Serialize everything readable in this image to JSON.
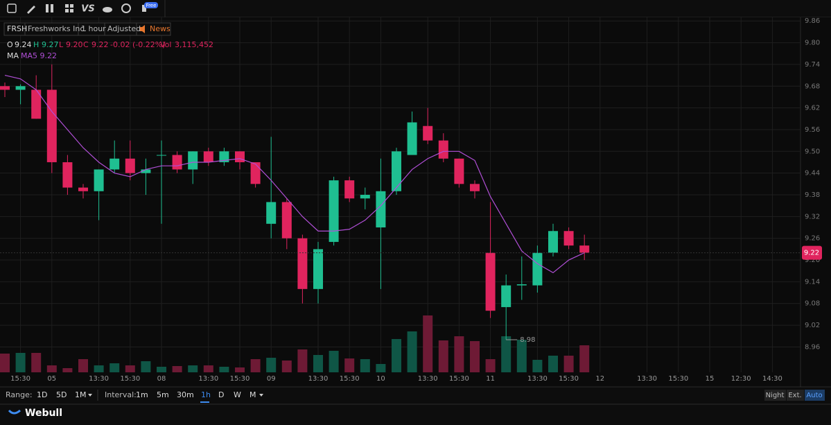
{
  "toolbar": {
    "vs": "VS",
    "badge": "Free"
  },
  "header": {
    "symbol": "FRSH",
    "name": "Freshworks Inc.",
    "interval": "1 hour",
    "adjustment": "Adjusted",
    "news": "News"
  },
  "legend": {
    "o_label": "O",
    "open": "9.24",
    "h_label": "H",
    "high": "9.27",
    "l_label": "L",
    "low": "9.20",
    "c_label": "C",
    "close": "9.22",
    "change": "-0.02 (-0.22%)",
    "vol_label": "Vol",
    "volume": "3,115,452",
    "ma_label": "MA",
    "ma5": "MA5 9.22"
  },
  "chart_data": {
    "type": "candlestick",
    "open": [
      9.68,
      9.67,
      9.67,
      9.67,
      9.47,
      9.4,
      9.39,
      9.45,
      9.48,
      9.44,
      9.49,
      9.49,
      9.45,
      9.5,
      9.47,
      9.5,
      9.47,
      9.3,
      9.36,
      9.26,
      9.12,
      9.25,
      9.42,
      9.37,
      9.29,
      9.39,
      9.49,
      9.57,
      9.53,
      9.48,
      9.41,
      9.22,
      9.07,
      9.13,
      9.13,
      9.22,
      9.28,
      9.24
    ],
    "high": [
      9.69,
      9.685,
      9.71,
      9.74,
      9.49,
      9.41,
      9.45,
      9.53,
      9.53,
      9.48,
      9.53,
      9.5,
      9.5,
      9.51,
      9.51,
      9.5,
      9.47,
      9.54,
      9.37,
      9.27,
      9.25,
      9.43,
      9.43,
      9.4,
      9.48,
      9.51,
      9.61,
      9.62,
      9.55,
      9.48,
      9.42,
      9.36,
      9.16,
      9.21,
      9.24,
      9.3,
      9.29,
      9.27
    ],
    "low": [
      9.65,
      9.63,
      9.59,
      9.44,
      9.38,
      9.37,
      9.31,
      9.44,
      9.42,
      9.38,
      9.3,
      9.44,
      9.41,
      9.46,
      9.46,
      9.45,
      9.4,
      9.26,
      9.23,
      9.08,
      9.08,
      9.24,
      9.36,
      9.34,
      9.12,
      9.38,
      9.49,
      9.52,
      9.47,
      9.4,
      9.37,
      9.04,
      8.98,
      9.09,
      9.11,
      9.21,
      9.23,
      9.2
    ],
    "close": [
      9.67,
      9.68,
      9.59,
      9.47,
      9.4,
      9.39,
      9.45,
      9.48,
      9.44,
      9.45,
      9.49,
      9.45,
      9.5,
      9.47,
      9.5,
      9.47,
      9.41,
      9.36,
      9.26,
      9.12,
      9.23,
      9.42,
      9.37,
      9.38,
      9.39,
      9.5,
      9.58,
      9.53,
      9.48,
      9.41,
      9.39,
      9.06,
      9.13,
      9.133,
      9.22,
      9.28,
      9.24,
      9.22
    ],
    "volume": [
      2160000,
      2240000,
      2240000,
      800000,
      480000,
      1520000,
      800000,
      1040000,
      800000,
      1280000,
      640000,
      720000,
      800000,
      800000,
      640000,
      560000,
      1520000,
      1680000,
      1360000,
      2640000,
      2000000,
      2480000,
      1600000,
      1520000,
      960000,
      3840000,
      4720000,
      6560000,
      3680000,
      4160000,
      3600000,
      1520000,
      4160000,
      3760000,
      1440000,
      1920000,
      1920000,
      3115452
    ],
    "ma_values": [
      9.71,
      9.7,
      9.67,
      9.61,
      9.56,
      9.51,
      9.47,
      9.44,
      9.43,
      9.45,
      9.46,
      9.46,
      9.47,
      9.47,
      9.475,
      9.48,
      9.465,
      9.42,
      9.37,
      9.32,
      9.28,
      9.28,
      9.285,
      9.31,
      9.35,
      9.4,
      9.45,
      9.48,
      9.5,
      9.5,
      9.475,
      9.375,
      9.3,
      9.225,
      9.19,
      9.165,
      9.2,
      9.22
    ],
    "up_color": "#1fbf91",
    "down_color": "#e0245e",
    "up_volume_color": "#0f5646",
    "down_volume_color": "#6e1a35",
    "ma_color": "#b04fd6",
    "ylim": [
      8.89,
      9.87
    ],
    "yticks": [
      9.86,
      {
        "value": 9.8,
        "label": "9.80"
      },
      9.74,
      9.68,
      9.62,
      9.56,
      {
        "value": 9.5,
        "label": "9.50"
      },
      9.44,
      9.38,
      9.32,
      9.26,
      {
        "value": 9.2,
        "label": "9.20"
      },
      9.14,
      9.08,
      9.02,
      8.96
    ],
    "xticks": [
      {
        "value": 1,
        "label": "15:30"
      },
      {
        "value": 3,
        "label": "05"
      },
      {
        "value": 6,
        "label": "13:30"
      },
      {
        "value": 8,
        "label": "15:30"
      },
      {
        "value": 10,
        "label": "08"
      },
      {
        "value": 13,
        "label": "13:30"
      },
      {
        "value": 15,
        "label": "15:30"
      },
      {
        "value": 17,
        "label": "09"
      },
      {
        "value": 20,
        "label": "13:30"
      },
      {
        "value": 22,
        "label": "15:30"
      },
      {
        "value": 24,
        "label": "10"
      },
      {
        "value": 27,
        "label": "13:30"
      },
      {
        "value": 29,
        "label": "15:30"
      },
      {
        "value": 31,
        "label": "11"
      },
      {
        "value": 34,
        "label": "13:30"
      },
      {
        "value": 36,
        "label": "15:30"
      },
      {
        "value": 38,
        "label": "12"
      },
      {
        "value": 41,
        "label": "13:30"
      },
      {
        "value": 43,
        "label": "15:30"
      },
      {
        "value": 45,
        "label": "15"
      },
      {
        "value": 47,
        "label": "12:30"
      },
      {
        "value": 49,
        "label": "14:30"
      }
    ],
    "grid": true
  },
  "range": {
    "label": "Range:",
    "options": [
      "1D",
      "5D",
      "1M"
    ]
  },
  "interval": {
    "label": "Interval:",
    "options": [
      "1m",
      "5m",
      "30m",
      "1h",
      "D",
      "W",
      "M"
    ]
  },
  "session": [
    "Night",
    "Ext.",
    "Auto"
  ],
  "brand": "Webull"
}
